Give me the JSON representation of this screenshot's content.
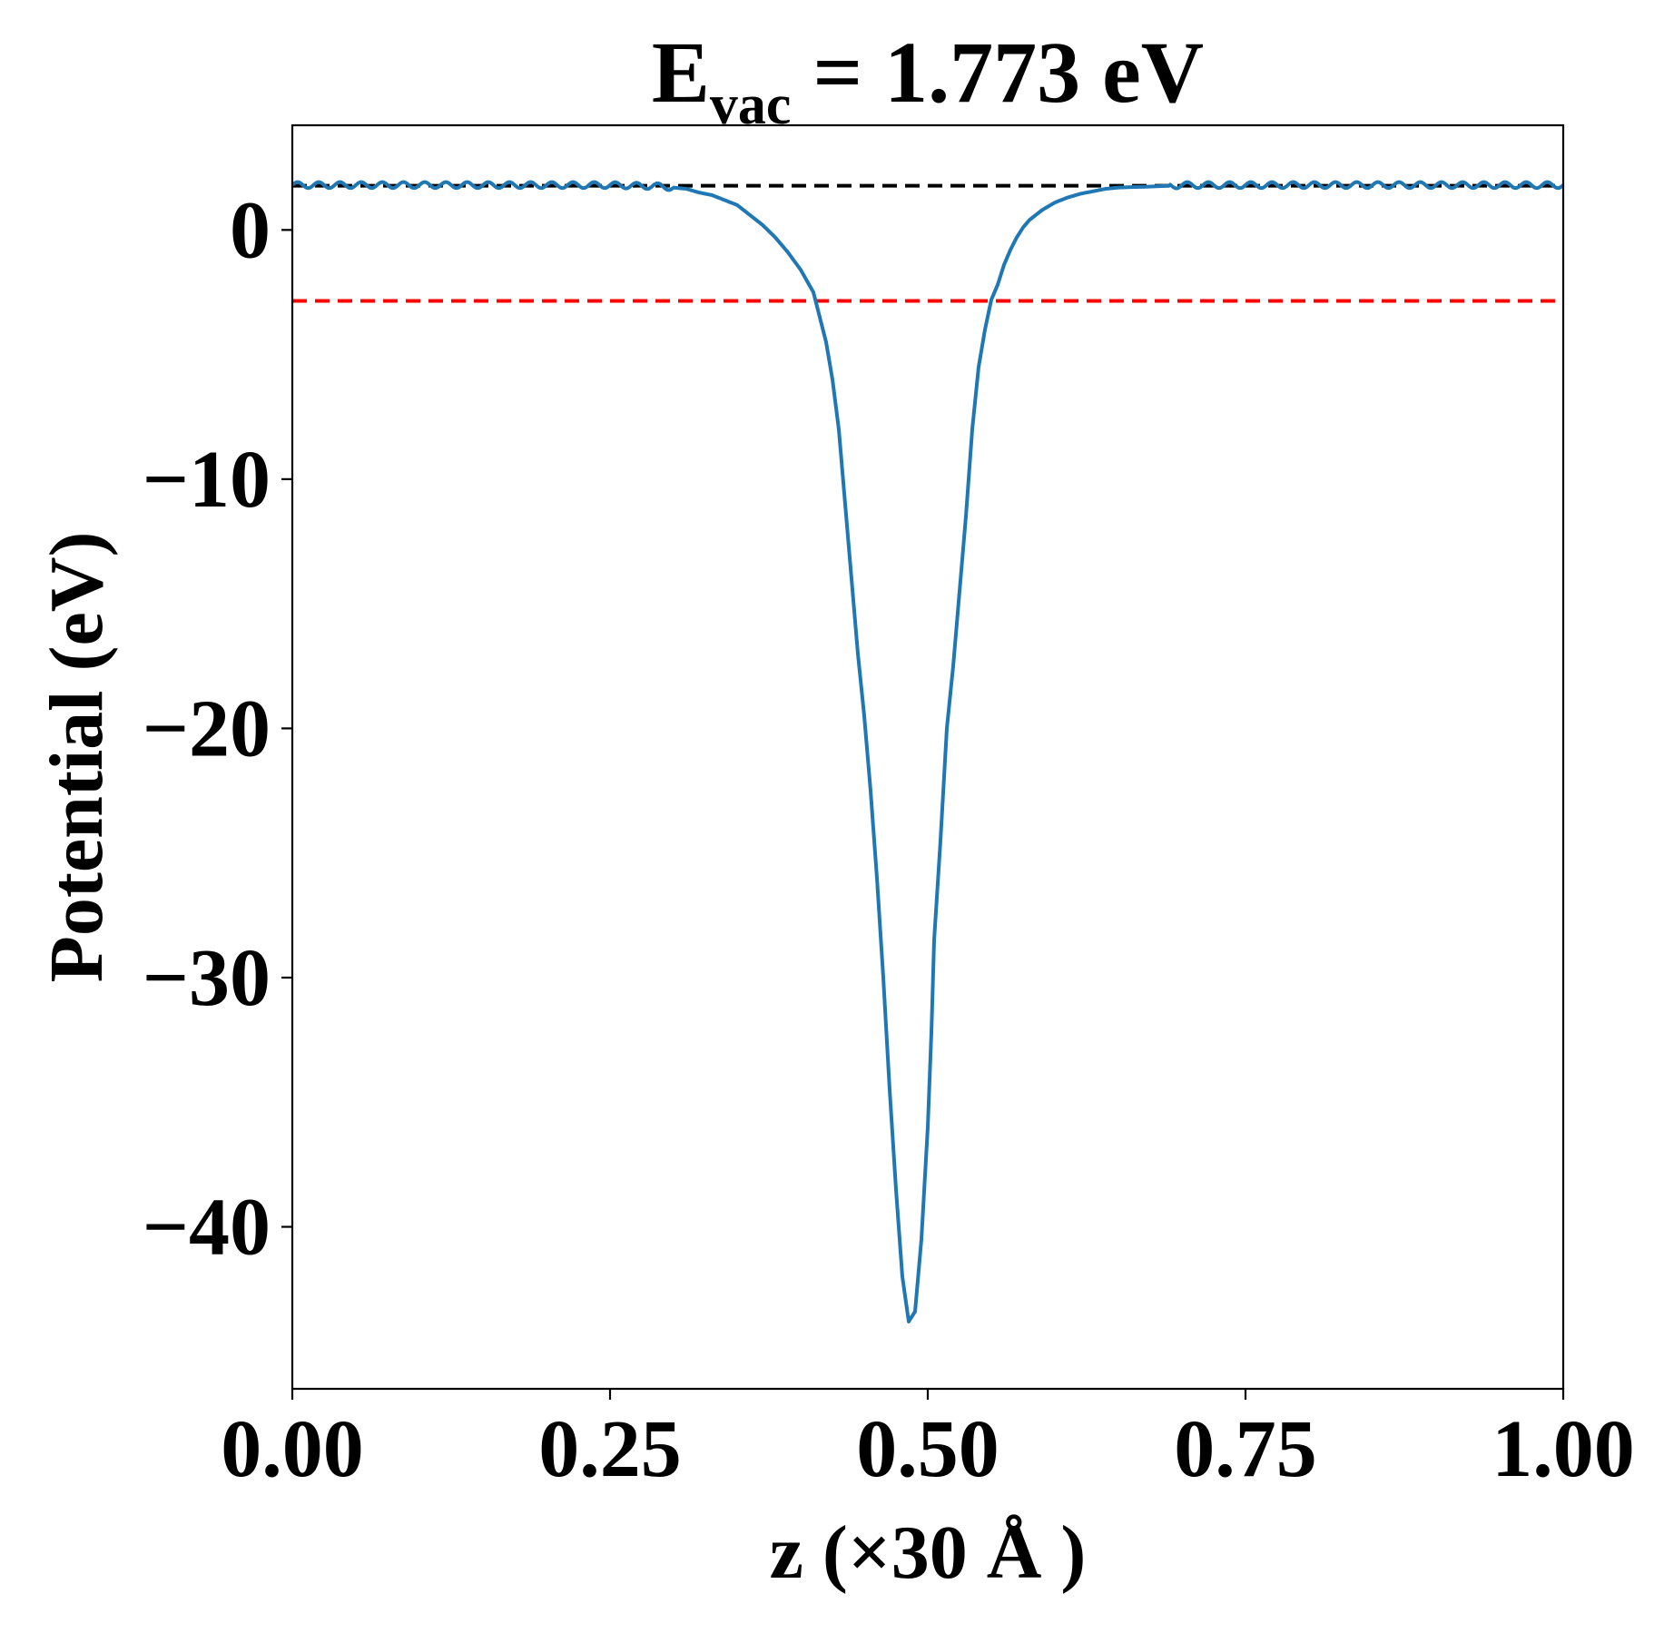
{
  "chart_data": {
    "type": "line",
    "title": {
      "main": "E",
      "subscript": "vac",
      "rest": " = 1.773 eV"
    },
    "xlabel": "z (×30 Å )",
    "ylabel": "Potential (eV)",
    "xlim": [
      0.0,
      1.0
    ],
    "ylim": [
      -46.5,
      4.2
    ],
    "x_ticks": [
      {
        "value": 0.0,
        "label": "0.00"
      },
      {
        "value": 0.25,
        "label": "0.25"
      },
      {
        "value": 0.5,
        "label": "0.50"
      },
      {
        "value": 0.75,
        "label": "0.75"
      },
      {
        "value": 1.0,
        "label": "1.00"
      }
    ],
    "y_ticks": [
      {
        "value": 0,
        "label": "0"
      },
      {
        "value": -10,
        "label": "−10"
      },
      {
        "value": -20,
        "label": "−20"
      },
      {
        "value": -30,
        "label": "−30"
      },
      {
        "value": -40,
        "label": "−40"
      }
    ],
    "grid": false,
    "series": [
      {
        "color": "#1f77b4",
        "style": "solid",
        "x": [
          0.0,
          0.05,
          0.1,
          0.15,
          0.2,
          0.25,
          0.29,
          0.31,
          0.32,
          0.33,
          0.34,
          0.35,
          0.36,
          0.37,
          0.38,
          0.39,
          0.4,
          0.41,
          0.42,
          0.425,
          0.43,
          0.435,
          0.44,
          0.445,
          0.45,
          0.455,
          0.46,
          0.465,
          0.47,
          0.475,
          0.48,
          0.485,
          0.49,
          0.495,
          0.5,
          0.503,
          0.505,
          0.51,
          0.515,
          0.52,
          0.525,
          0.53,
          0.535,
          0.54,
          0.545,
          0.55,
          0.555,
          0.56,
          0.565,
          0.57,
          0.575,
          0.58,
          0.59,
          0.6,
          0.61,
          0.62,
          0.63,
          0.64,
          0.65,
          0.66,
          0.67,
          0.68,
          0.7,
          0.75,
          0.8,
          0.85,
          0.9,
          0.95,
          1.0
        ],
        "y": [
          1.8,
          1.8,
          1.8,
          1.8,
          1.8,
          1.8,
          1.75,
          1.65,
          1.5,
          1.4,
          1.2,
          1.0,
          0.6,
          0.2,
          -0.3,
          -0.9,
          -1.6,
          -2.5,
          -4.5,
          -6.0,
          -8.0,
          -11.0,
          -14.0,
          -17.0,
          -19.5,
          -22.5,
          -26.0,
          -30.0,
          -34.5,
          -38.5,
          -42.0,
          -43.8,
          -43.4,
          -40.5,
          -36.0,
          -32.0,
          -28.5,
          -24.5,
          -20.0,
          -17.5,
          -14.5,
          -11.5,
          -8.0,
          -5.5,
          -4.0,
          -2.8,
          -2.2,
          -1.4,
          -0.8,
          -0.3,
          0.1,
          0.4,
          0.8,
          1.1,
          1.3,
          1.45,
          1.55,
          1.65,
          1.7,
          1.72,
          1.73,
          1.75,
          1.8,
          1.8,
          1.8,
          1.8,
          1.8,
          1.8,
          1.8
        ],
        "ripple_amplitude": 0.12
      }
    ],
    "reference_lines": [
      {
        "y": 1.773,
        "color": "#000000",
        "style": "dashed"
      },
      {
        "y": -2.85,
        "color": "#ff0000",
        "style": "dashed"
      }
    ]
  }
}
